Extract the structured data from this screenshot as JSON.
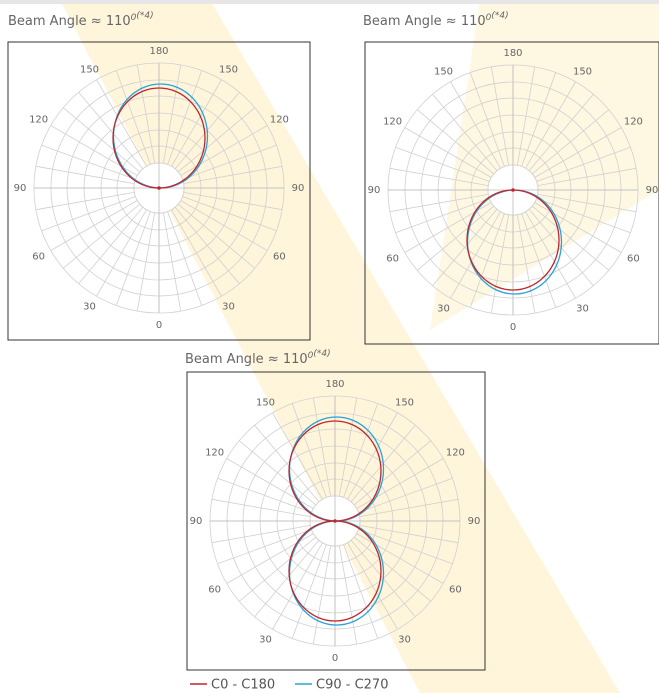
{
  "diagrams": [
    {
      "title": "Beam Angle ≈ 110",
      "title_sup": "0",
      "title_note": "(*4)",
      "angle_labels": [
        "180",
        "150",
        "150",
        "120",
        "120",
        "90",
        "90",
        "60",
        "60",
        "30",
        "30",
        "0"
      ]
    },
    {
      "title": "Beam Angle ≈ 110",
      "title_sup": "0",
      "title_note": "(*4)",
      "angle_labels": [
        "180",
        "150",
        "150",
        "120",
        "120",
        "90",
        "90",
        "60",
        "60",
        "30",
        "30",
        "0"
      ]
    },
    {
      "title": "Beam Angle ≈ 110",
      "title_sup": "0",
      "title_note": "(*4)",
      "angle_labels": [
        "180",
        "150",
        "150",
        "120",
        "120",
        "90",
        "90",
        "60",
        "60",
        "30",
        "30",
        "0"
      ]
    }
  ],
  "legend": [
    {
      "label": "C0 - C180",
      "color": "#c0272d"
    },
    {
      "label": "C90 - C270",
      "color": "#29a3dc"
    }
  ]
}
